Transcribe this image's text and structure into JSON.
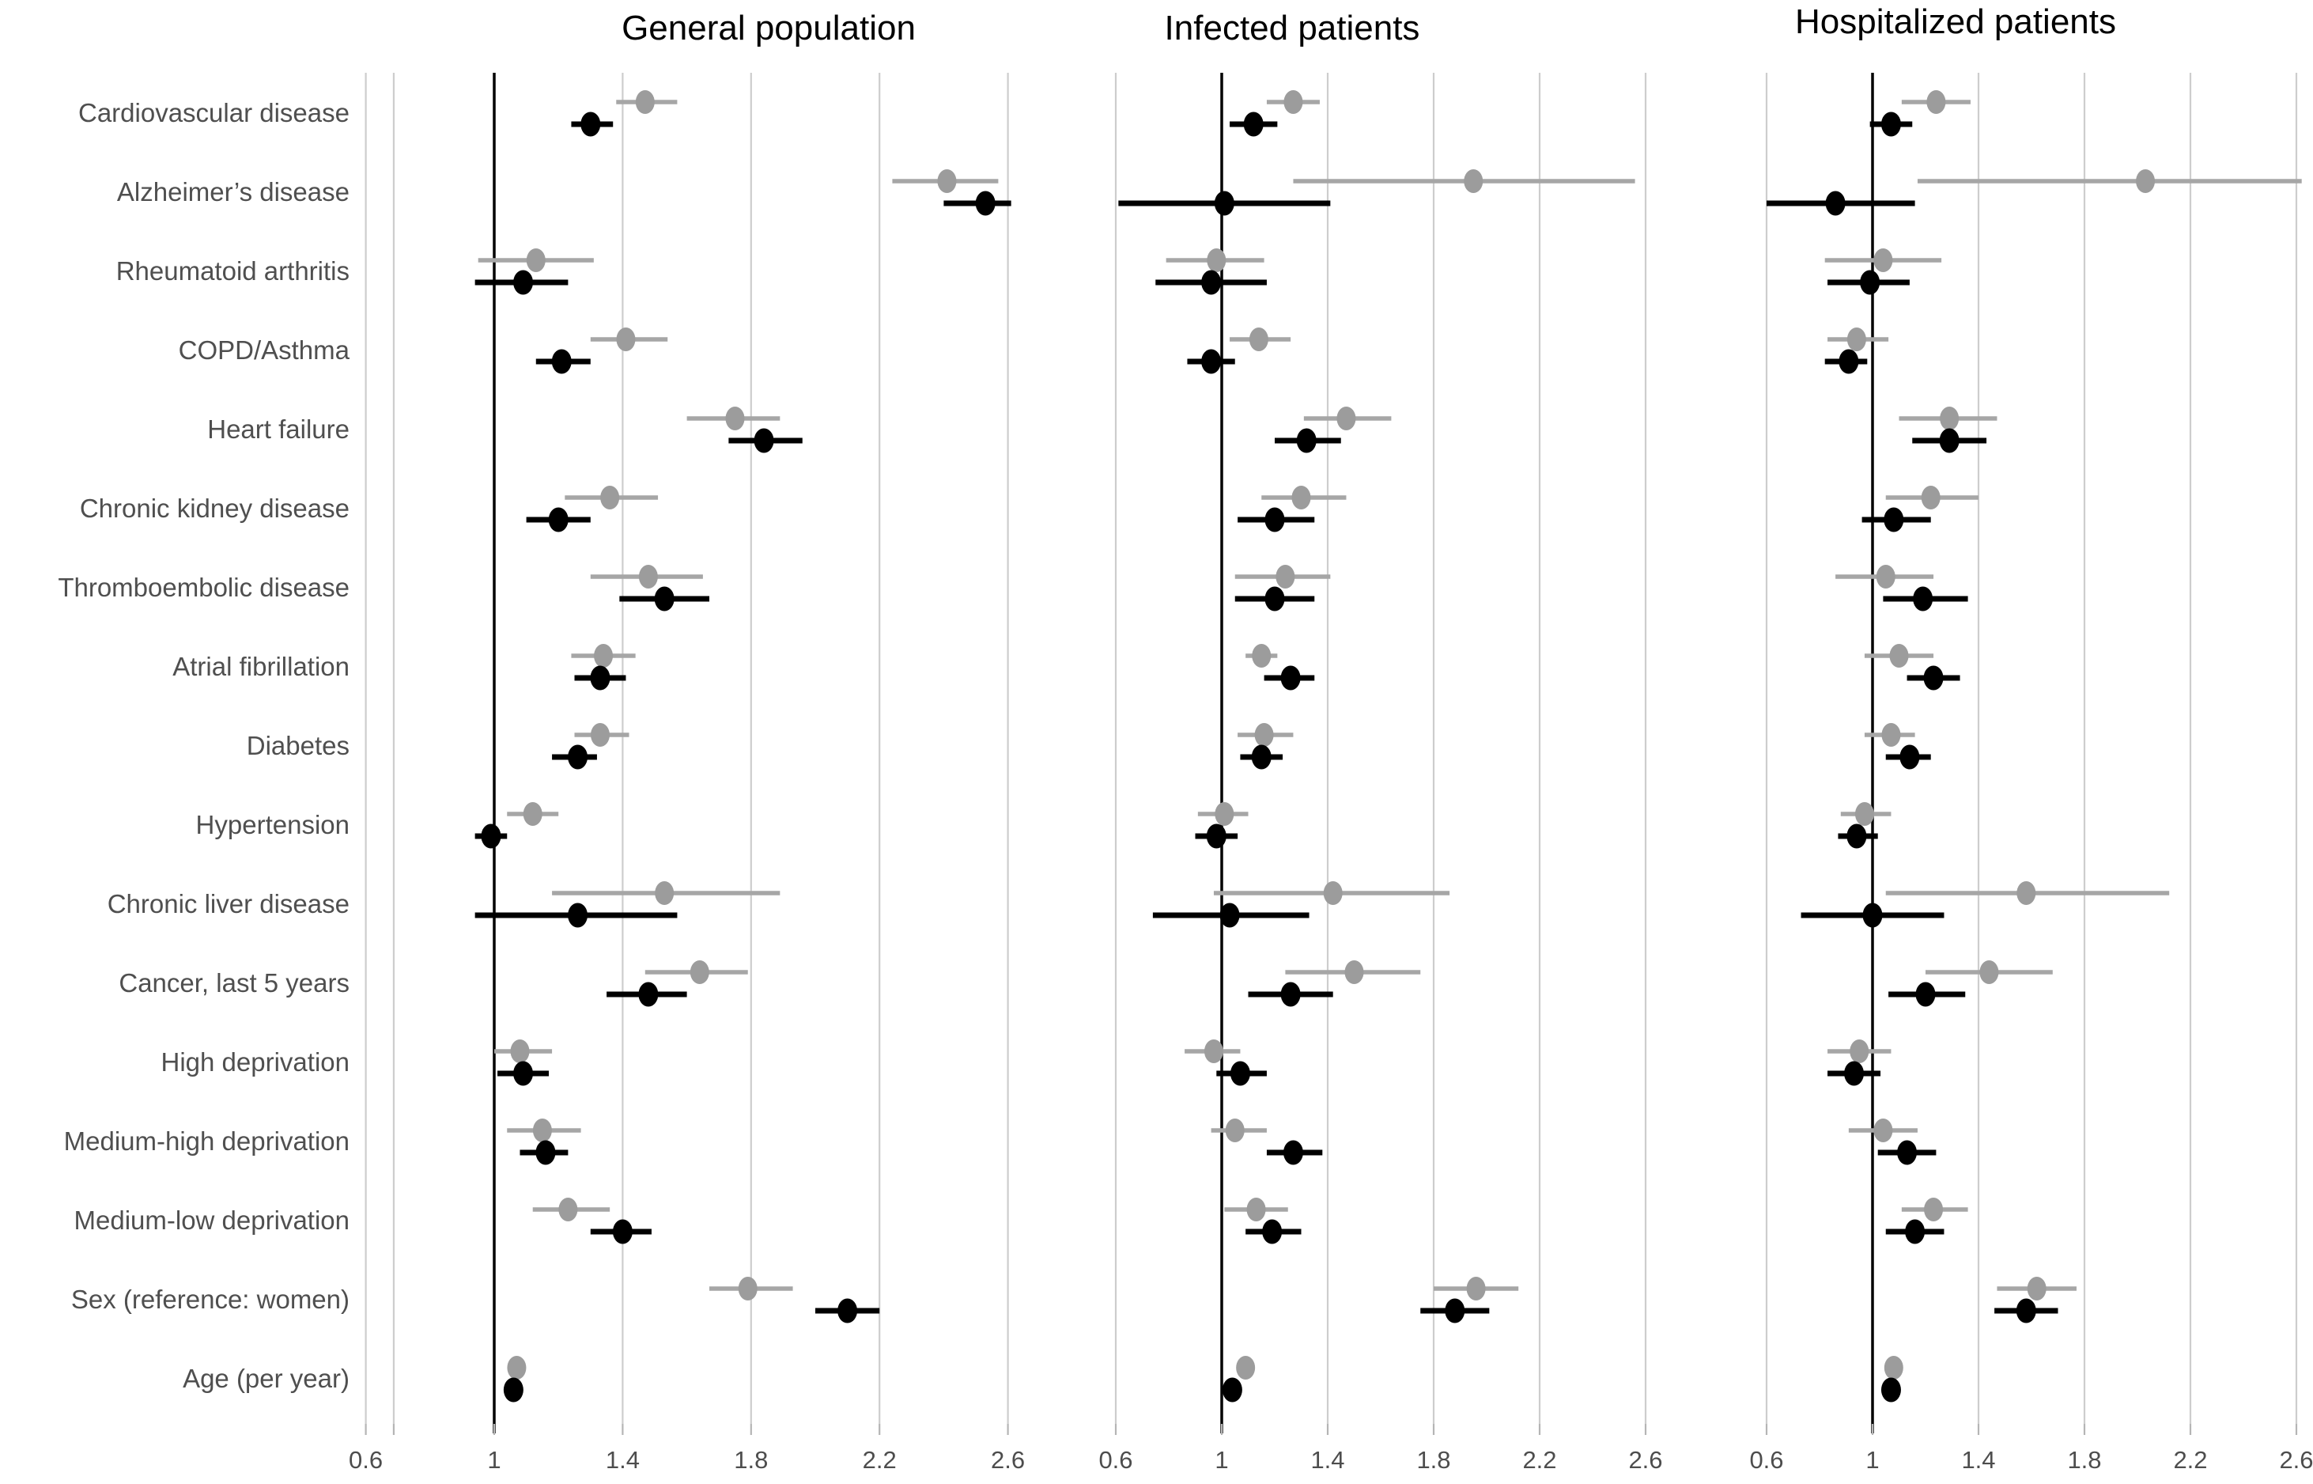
{
  "chart_data": {
    "type": "scatter",
    "subtype": "forest_plot",
    "title": "",
    "xlabel": "",
    "ylabel": "",
    "xlim": [
      0.55,
      2.7
    ],
    "grid": true,
    "legend_position": "none",
    "reference_line_x": 1,
    "x_ticks": [
      0.6,
      1,
      1.4,
      1.8,
      2.2,
      2.6
    ],
    "x_tick_labels": [
      "0.6",
      "1",
      "1.4",
      "1.8",
      "2.2",
      "2.6"
    ],
    "gridline_color": "#cdcdcd",
    "tick_color": "#b5b5b5",
    "label_color": "#4f4f4f",
    "point_format": [
      "estimate",
      "ci_lower",
      "ci_upper"
    ],
    "categories": [
      "Cardiovascular disease",
      "Alzheimer’s disease",
      "Rheumatoid arthritis",
      "COPD/Asthma",
      "Heart failure",
      "Chronic kidney disease",
      "Thromboembolic disease",
      "Atrial fibrillation",
      "Diabetes",
      "Hypertension",
      "Chronic liver disease",
      "Cancer, last 5 years",
      "High deprivation",
      "Medium-high deprivation",
      "Medium-low deprivation",
      "Sex (reference: women)",
      "Age (per year)"
    ],
    "panels": [
      {
        "title": "General population",
        "series": [
          {
            "name": "gray-series",
            "color": "#9c9c9c",
            "line_color": "#a6a6a6",
            "points": [
              [
                1.47,
                1.38,
                1.57
              ],
              [
                2.41,
                2.24,
                2.57
              ],
              [
                1.13,
                0.95,
                1.31
              ],
              [
                1.41,
                1.3,
                1.54
              ],
              [
                1.75,
                1.6,
                1.89
              ],
              [
                1.36,
                1.22,
                1.51
              ],
              [
                1.48,
                1.3,
                1.65
              ],
              [
                1.34,
                1.24,
                1.44
              ],
              [
                1.33,
                1.25,
                1.42
              ],
              [
                1.12,
                1.04,
                1.2
              ],
              [
                1.53,
                1.18,
                1.89
              ],
              [
                1.64,
                1.47,
                1.79
              ],
              [
                1.08,
                1.0,
                1.18
              ],
              [
                1.15,
                1.04,
                1.27
              ],
              [
                1.23,
                1.12,
                1.36
              ],
              [
                1.79,
                1.67,
                1.93
              ],
              [
                1.07,
                1.06,
                1.08
              ]
            ]
          },
          {
            "name": "black-series",
            "color": "#000000",
            "line_color": "#000000",
            "points": [
              [
                1.3,
                1.24,
                1.37
              ],
              [
                2.53,
                2.4,
                2.61
              ],
              [
                1.09,
                0.94,
                1.23
              ],
              [
                1.21,
                1.13,
                1.3
              ],
              [
                1.84,
                1.73,
                1.96
              ],
              [
                1.2,
                1.1,
                1.3
              ],
              [
                1.53,
                1.39,
                1.67
              ],
              [
                1.33,
                1.25,
                1.41
              ],
              [
                1.26,
                1.18,
                1.32
              ],
              [
                0.99,
                0.94,
                1.04
              ],
              [
                1.26,
                0.94,
                1.57
              ],
              [
                1.48,
                1.35,
                1.6
              ],
              [
                1.09,
                1.01,
                1.17
              ],
              [
                1.16,
                1.08,
                1.23
              ],
              [
                1.4,
                1.3,
                1.49
              ],
              [
                2.1,
                2.0,
                2.2
              ],
              [
                1.06,
                1.05,
                1.07
              ]
            ]
          }
        ]
      },
      {
        "title": "Infected patients",
        "series": [
          {
            "name": "gray-series",
            "color": "#9c9c9c",
            "line_color": "#a6a6a6",
            "points": [
              [
                1.27,
                1.17,
                1.37
              ],
              [
                1.95,
                1.27,
                2.56
              ],
              [
                0.98,
                0.79,
                1.16
              ],
              [
                1.14,
                1.03,
                1.26
              ],
              [
                1.47,
                1.31,
                1.64
              ],
              [
                1.3,
                1.15,
                1.47
              ],
              [
                1.24,
                1.05,
                1.41
              ],
              [
                1.15,
                1.09,
                1.21
              ],
              [
                1.16,
                1.06,
                1.27
              ],
              [
                1.01,
                0.91,
                1.1
              ],
              [
                1.42,
                0.97,
                1.86
              ],
              [
                1.5,
                1.24,
                1.75
              ],
              [
                0.97,
                0.86,
                1.07
              ],
              [
                1.05,
                0.96,
                1.17
              ],
              [
                1.13,
                1.01,
                1.25
              ],
              [
                1.96,
                1.8,
                2.12
              ],
              [
                1.09,
                1.08,
                1.1
              ]
            ]
          },
          {
            "name": "black-series",
            "color": "#000000",
            "line_color": "#000000",
            "points": [
              [
                1.12,
                1.03,
                1.21
              ],
              [
                1.01,
                0.61,
                1.41
              ],
              [
                0.96,
                0.75,
                1.17
              ],
              [
                0.96,
                0.87,
                1.05
              ],
              [
                1.32,
                1.2,
                1.45
              ],
              [
                1.2,
                1.06,
                1.35
              ],
              [
                1.2,
                1.05,
                1.35
              ],
              [
                1.26,
                1.16,
                1.35
              ],
              [
                1.15,
                1.07,
                1.23
              ],
              [
                0.98,
                0.9,
                1.06
              ],
              [
                1.03,
                0.74,
                1.33
              ],
              [
                1.26,
                1.1,
                1.42
              ],
              [
                1.07,
                0.98,
                1.17
              ],
              [
                1.27,
                1.17,
                1.38
              ],
              [
                1.19,
                1.09,
                1.3
              ],
              [
                1.88,
                1.75,
                2.01
              ],
              [
                1.04,
                1.03,
                1.05
              ]
            ]
          }
        ]
      },
      {
        "title": "Hospitalized patients",
        "series": [
          {
            "name": "gray-series",
            "color": "#9c9c9c",
            "line_color": "#a6a6a6",
            "points": [
              [
                1.24,
                1.11,
                1.37
              ],
              [
                2.03,
                1.17,
                2.62
              ],
              [
                1.04,
                0.82,
                1.26
              ],
              [
                0.94,
                0.83,
                1.06
              ],
              [
                1.29,
                1.1,
                1.47
              ],
              [
                1.22,
                1.05,
                1.4
              ],
              [
                1.05,
                0.86,
                1.23
              ],
              [
                1.1,
                0.97,
                1.23
              ],
              [
                1.07,
                0.97,
                1.16
              ],
              [
                0.97,
                0.88,
                1.07
              ],
              [
                1.58,
                1.05,
                2.12
              ],
              [
                1.44,
                1.2,
                1.68
              ],
              [
                0.95,
                0.83,
                1.07
              ],
              [
                1.04,
                0.91,
                1.17
              ],
              [
                1.23,
                1.11,
                1.36
              ],
              [
                1.62,
                1.47,
                1.77
              ],
              [
                1.08,
                1.07,
                1.09
              ]
            ]
          },
          {
            "name": "black-series",
            "color": "#000000",
            "line_color": "#000000",
            "points": [
              [
                1.07,
                0.99,
                1.15
              ],
              [
                0.86,
                0.6,
                1.16
              ],
              [
                0.99,
                0.83,
                1.14
              ],
              [
                0.91,
                0.82,
                0.98
              ],
              [
                1.29,
                1.15,
                1.43
              ],
              [
                1.08,
                0.96,
                1.22
              ],
              [
                1.19,
                1.04,
                1.36
              ],
              [
                1.23,
                1.13,
                1.33
              ],
              [
                1.14,
                1.05,
                1.22
              ],
              [
                0.94,
                0.87,
                1.02
              ],
              [
                1.0,
                0.73,
                1.27
              ],
              [
                1.2,
                1.06,
                1.35
              ],
              [
                0.93,
                0.83,
                1.03
              ],
              [
                1.13,
                1.02,
                1.24
              ],
              [
                1.16,
                1.05,
                1.27
              ],
              [
                1.58,
                1.46,
                1.7
              ],
              [
                1.07,
                1.06,
                1.08
              ]
            ]
          }
        ]
      }
    ]
  }
}
